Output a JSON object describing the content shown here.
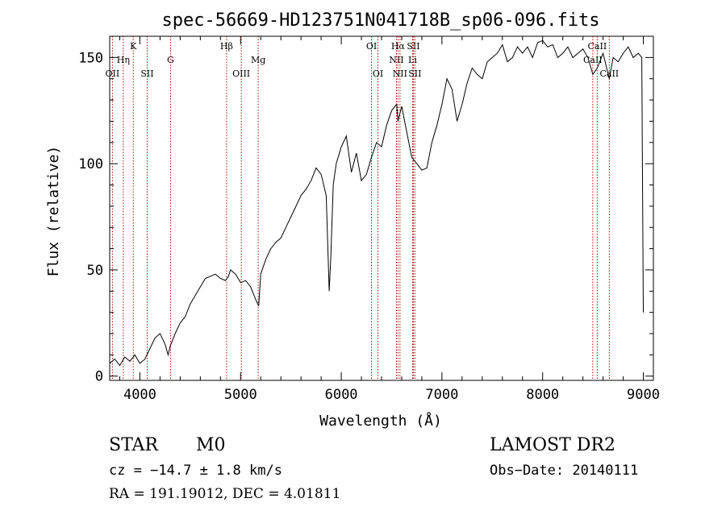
{
  "chart_data": {
    "type": "line",
    "title": "spec-56669-HD123751N041718B_sp06-096.fits",
    "xlabel": "Wavelength (Å)",
    "ylabel": "Flux (relative)",
    "xlim": [
      3700,
      9100
    ],
    "ylim": [
      -2,
      160
    ],
    "xticks": [
      4000,
      5000,
      6000,
      7000,
      8000,
      9000
    ],
    "yticks": [
      0,
      50,
      100,
      150
    ],
    "series": [
      {
        "color": "#000000",
        "x": [
          3700,
          3750,
          3800,
          3850,
          3900,
          3950,
          4000,
          4050,
          4100,
          4150,
          4200,
          4250,
          4280,
          4300,
          4350,
          4400,
          4450,
          4500,
          4550,
          4600,
          4650,
          4700,
          4750,
          4800,
          4850,
          4880,
          4900,
          4950,
          5000,
          5050,
          5100,
          5150,
          5180,
          5200,
          5250,
          5300,
          5350,
          5400,
          5450,
          5500,
          5550,
          5600,
          5650,
          5700,
          5750,
          5800,
          5850,
          5880,
          5895,
          5920,
          5950,
          6000,
          6050,
          6100,
          6150,
          6200,
          6250,
          6300,
          6350,
          6400,
          6450,
          6500,
          6550,
          6563,
          6600,
          6650,
          6700,
          6750,
          6800,
          6850,
          6900,
          6950,
          7000,
          7050,
          7100,
          7150,
          7200,
          7250,
          7300,
          7350,
          7400,
          7450,
          7500,
          7550,
          7600,
          7650,
          7700,
          7750,
          7800,
          7850,
          7900,
          7950,
          8000,
          8050,
          8100,
          8150,
          8200,
          8250,
          8300,
          8350,
          8400,
          8450,
          8498,
          8542,
          8600,
          8662,
          8700,
          8750,
          8800,
          8850,
          8900,
          8950,
          8985,
          9000
        ],
        "y": [
          6,
          8,
          5,
          9,
          7,
          10,
          6,
          8,
          13,
          18,
          20,
          15,
          10,
          14,
          20,
          25,
          28,
          34,
          38,
          42,
          46,
          47,
          48,
          46,
          45,
          47,
          50,
          48,
          44,
          45,
          42,
          36,
          33,
          48,
          55,
          60,
          63,
          65,
          70,
          75,
          80,
          85,
          88,
          92,
          98,
          95,
          85,
          40,
          55,
          90,
          100,
          108,
          113,
          96,
          105,
          92,
          95,
          103,
          110,
          108,
          118,
          125,
          128,
          120,
          127,
          115,
          103,
          100,
          97,
          98,
          110,
          118,
          128,
          140,
          135,
          120,
          128,
          138,
          145,
          142,
          140,
          148,
          150,
          152,
          156,
          148,
          150,
          155,
          152,
          155,
          150,
          157,
          158,
          155,
          156,
          150,
          152,
          155,
          150,
          152,
          154,
          150,
          142,
          145,
          152,
          140,
          150,
          148,
          152,
          155,
          150,
          152,
          150,
          30
        ]
      }
    ],
    "lines": [
      {
        "label": "OII",
        "x": 3727,
        "row": 1
      },
      {
        "label": "Hη",
        "x": 3835,
        "row": 2
      },
      {
        "label": "K",
        "x": 3934,
        "row": 3
      },
      {
        "label": "SII",
        "x": 4072,
        "row": 1
      },
      {
        "label": "G",
        "x": 4304,
        "row": 2
      },
      {
        "label": "Hβ",
        "x": 4861,
        "row": 3
      },
      {
        "label": "OIII",
        "x": 5007,
        "row": 1
      },
      {
        "label": "Mg",
        "x": 5175,
        "row": 2
      },
      {
        "label": "OI",
        "x": 6300,
        "row": 3
      },
      {
        "label": "OI",
        "x": 6364,
        "row": 1
      },
      {
        "label": "NII",
        "x": 6548,
        "row": 2
      },
      {
        "label": "Hα",
        "x": 6563,
        "row": 3
      },
      {
        "label": "NII",
        "x": 6583,
        "row": 1
      },
      {
        "label": "Li",
        "x": 6708,
        "row": 2
      },
      {
        "label": "SII",
        "x": 6716,
        "row": 3
      },
      {
        "label": "SII",
        "x": 6731,
        "row": 1
      },
      {
        "label": "CaII",
        "x": 8498,
        "row": 2
      },
      {
        "label": "CaII",
        "x": 8542,
        "row": 3
      },
      {
        "label": "CaII",
        "x": 8662,
        "row": 1
      }
    ],
    "line_color": "#aa0000"
  },
  "info": {
    "class": "STAR",
    "subclass": "M0",
    "survey": "LAMOST DR2",
    "cz": "cz = −14.7 ± 1.8 km/s",
    "obs_date": "Obs−Date: 20140111",
    "coords": "RA = 191.19012, DEC =   4.01811"
  }
}
